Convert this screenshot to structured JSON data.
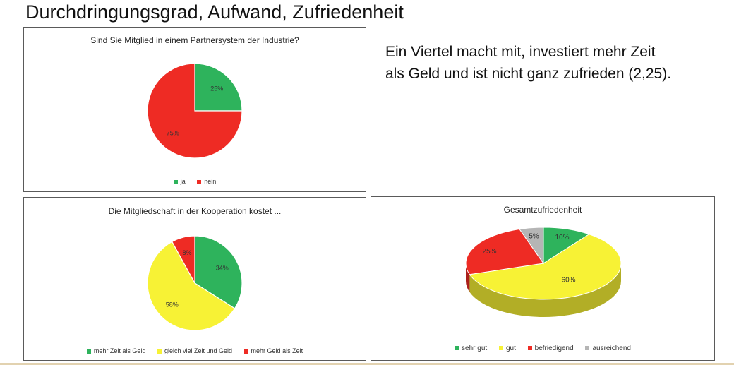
{
  "slide_title": "Durchdringungsgrad, Aufwand, Zufriedenheit",
  "side_text": {
    "line1": "Ein Viertel macht mit, investiert mehr Zeit",
    "line2": "als Geld und ist nicht ganz zufrieden (2,25)."
  },
  "chart_data": [
    {
      "type": "pie",
      "title": "Sind Sie Mitglied in einem Partnersystem der Industrie?",
      "categories": [
        "ja",
        "nein"
      ],
      "values": [
        25,
        75
      ],
      "data_labels": [
        "25%",
        "75%"
      ],
      "colors": [
        "#2eb35c",
        "#ee2b24"
      ],
      "legend_position": "bottom"
    },
    {
      "type": "pie",
      "title": "Die Mitgliedschaft in der Kooperation kostet ...",
      "categories": [
        "mehr Zeit als Geld",
        "gleich viel Zeit und Geld",
        "mehr Geld als Zeit"
      ],
      "values": [
        34,
        58,
        8
      ],
      "data_labels": [
        "34%",
        "58%",
        "8%"
      ],
      "colors": [
        "#2eb35c",
        "#f7f235",
        "#ee2b24"
      ],
      "legend_position": "bottom"
    },
    {
      "type": "pie",
      "title": "Gesamtzufriedenheit",
      "style": "3d",
      "categories": [
        "sehr gut",
        "gut",
        "befriedigend",
        "ausreichend"
      ],
      "values": [
        10,
        60,
        25,
        5
      ],
      "data_labels": [
        "10%",
        "60%",
        "25%",
        "5%"
      ],
      "colors": [
        "#2eb35c",
        "#f7f235",
        "#ee2b24",
        "#b5b5b5"
      ],
      "legend_position": "bottom"
    }
  ]
}
